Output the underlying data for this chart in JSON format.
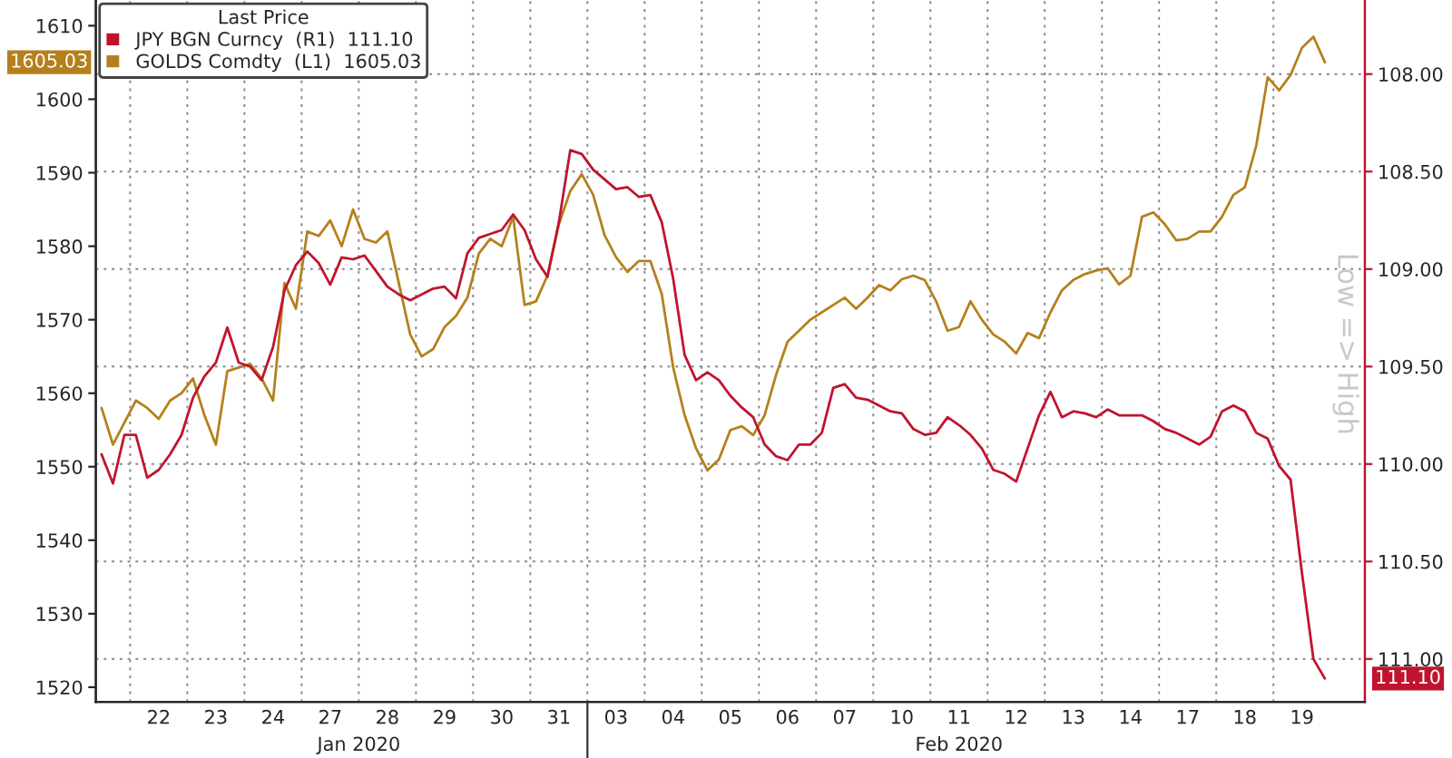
{
  "chart_data": {
    "type": "line",
    "legend_title": "Last Price",
    "y2label": "Low => High",
    "annotations": [
      "Jan 2020",
      "Feb 2020",
      "111.10",
      "1605.03"
    ],
    "categories": [
      null,
      null,
      null,
      null,
      null,
      "22",
      null,
      null,
      null,
      null,
      "23",
      null,
      null,
      null,
      null,
      "24",
      null,
      null,
      null,
      null,
      "27",
      null,
      null,
      null,
      null,
      "28",
      null,
      null,
      null,
      null,
      "29",
      null,
      null,
      null,
      null,
      "30",
      null,
      null,
      null,
      null,
      "31",
      null,
      null,
      null,
      null,
      "03",
      null,
      null,
      null,
      null,
      "04",
      null,
      null,
      null,
      null,
      "05",
      null,
      null,
      null,
      null,
      "06",
      null,
      null,
      null,
      null,
      "07",
      null,
      null,
      null,
      null,
      "10",
      null,
      null,
      null,
      null,
      "11",
      null,
      null,
      null,
      null,
      "12",
      null,
      null,
      null,
      null,
      "13",
      null,
      null,
      null,
      null,
      "14",
      null,
      null,
      null,
      null,
      "17",
      null,
      null,
      null,
      null,
      "18",
      null,
      null,
      null,
      null,
      "19",
      null,
      null
    ],
    "ylim": [
      1518,
      1613.5
    ],
    "yticks": [
      1520,
      1530,
      1540,
      1550,
      1560,
      1570,
      1580,
      1590,
      1600,
      1610
    ],
    "y2lim": [
      111.22,
      107.62
    ],
    "y2ticks": [
      {
        "value": 108.0,
        "label": "108.00"
      },
      {
        "value": 108.5,
        "label": "108.50"
      },
      {
        "value": 109.0,
        "label": "109.00"
      },
      {
        "value": 109.5,
        "label": "109.50"
      },
      {
        "value": 110.0,
        "label": "110.00"
      },
      {
        "value": 110.5,
        "label": "110.50"
      },
      {
        "value": 111.0,
        "label": "111.00"
      }
    ],
    "grid": true,
    "legend": "top left",
    "series": [
      {
        "name": "JPY BGN Curncy  (R1)  111.10",
        "color": "#c0142e",
        "axis": "y2",
        "values": [
          109.95,
          110.1,
          109.85,
          109.85,
          110.07,
          110.03,
          109.95,
          109.85,
          109.66,
          109.55,
          109.48,
          109.3,
          109.48,
          109.5,
          109.57,
          109.4,
          109.11,
          108.98,
          108.91,
          108.97,
          109.08,
          108.94,
          108.95,
          108.93,
          109.01,
          109.09,
          109.13,
          109.16,
          109.13,
          109.1,
          109.09,
          109.15,
          108.92,
          108.84,
          108.82,
          108.8,
          108.72,
          108.8,
          108.95,
          109.04,
          108.76,
          108.39,
          108.41,
          108.49,
          108.54,
          108.59,
          108.58,
          108.63,
          108.62,
          108.76,
          109.05,
          109.44,
          109.57,
          109.53,
          109.57,
          109.65,
          109.71,
          109.76,
          109.9,
          109.96,
          109.98,
          109.9,
          109.9,
          109.84,
          109.61,
          109.59,
          109.66,
          109.67,
          109.7,
          109.73,
          109.74,
          109.82,
          109.85,
          109.84,
          109.76,
          109.8,
          109.85,
          109.92,
          110.03,
          110.05,
          110.09,
          109.92,
          109.75,
          109.63,
          109.76,
          109.73,
          109.74,
          109.76,
          109.72,
          109.75,
          109.75,
          109.75,
          109.78,
          109.82,
          109.84,
          109.87,
          109.9,
          109.86,
          109.73,
          109.7,
          109.73,
          109.84,
          109.87,
          110.01,
          110.08,
          110.56,
          111.0,
          111.1
        ]
      },
      {
        "name": "GOLDS Comdty  (L1)  1605.03",
        "color": "#b5801c",
        "values": [
          1558,
          1553,
          1556,
          1559,
          1558,
          1556.5,
          1559,
          1560,
          1562,
          1557,
          1553,
          1563,
          1563.5,
          1564,
          1562,
          1559,
          1575,
          1571.5,
          1582,
          1581.4,
          1583.5,
          1580,
          1585,
          1581,
          1580.5,
          1582,
          1575,
          1568,
          1565,
          1566,
          1569,
          1570.5,
          1573,
          1579,
          1581,
          1580,
          1584,
          1572,
          1572.5,
          1576,
          1583,
          1587.5,
          1589.8,
          1587,
          1581.5,
          1578.5,
          1576.5,
          1578,
          1578,
          1573.5,
          1563.5,
          1557,
          1552.5,
          1549.5,
          1551,
          1555,
          1555.5,
          1554.3,
          1557,
          1562.5,
          1567,
          1568.5,
          1570,
          1571,
          1572,
          1573,
          1571.5,
          1573,
          1574.7,
          1574,
          1575.5,
          1576,
          1575.4,
          1572.5,
          1568.5,
          1569,
          1572.5,
          1570,
          1568,
          1567,
          1565.4,
          1568.2,
          1567.5,
          1571,
          1574,
          1575.4,
          1576.2,
          1576.7,
          1577,
          1574.8,
          1576,
          1584,
          1584.6,
          1583,
          1580.8,
          1581,
          1582,
          1582,
          1584,
          1587,
          1588,
          1593.7,
          1603,
          1601.2,
          1603.3,
          1607,
          1608.5,
          1605.03
        ]
      }
    ]
  }
}
